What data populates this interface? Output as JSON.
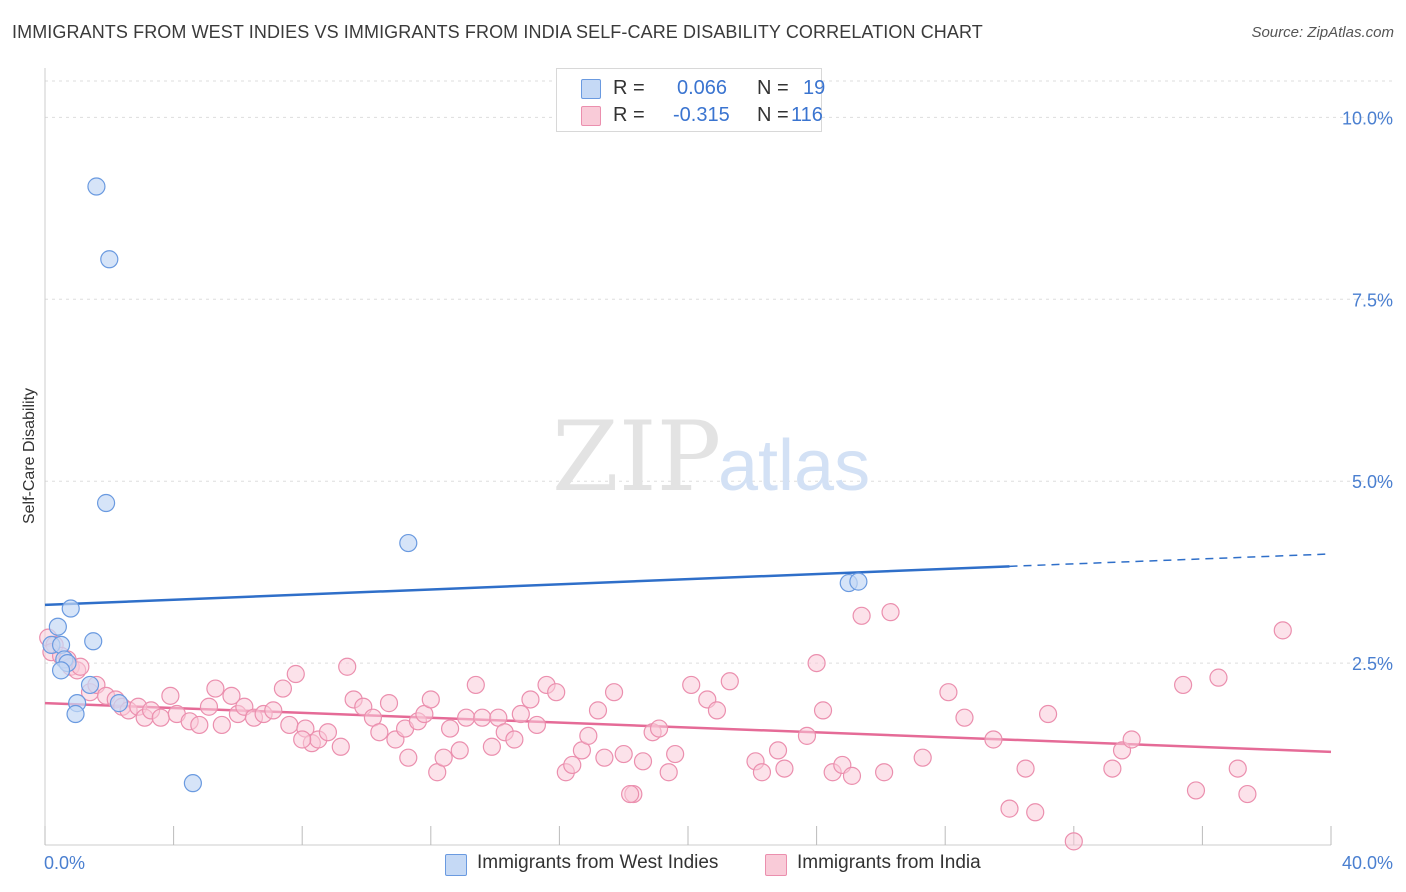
{
  "header": {
    "title": "IMMIGRANTS FROM WEST INDIES VS IMMIGRANTS FROM INDIA SELF-CARE DISABILITY CORRELATION CHART",
    "source": "Source: ZipAtlas.com"
  },
  "watermark": {
    "part1": "ZIP",
    "part2": "atlas"
  },
  "legend": {
    "rows": [
      {
        "r_label": "R =",
        "r_value": "0.066",
        "n_label": "N =",
        "n_value": "19"
      },
      {
        "r_label": "R =",
        "r_value": "-0.315",
        "n_label": "N =",
        "n_value": "116"
      }
    ]
  },
  "bottom_legend": {
    "items": [
      {
        "label": "Immigrants from West Indies"
      },
      {
        "label": "Immigrants from India"
      }
    ]
  },
  "colors": {
    "west_indies_fill": "#c5d9f5",
    "west_indies_stroke": "#6a9ae0",
    "west_indies_line": "#2f6fc9",
    "india_fill": "#f9cbd8",
    "india_stroke": "#eb8fae",
    "india_line": "#e56b97",
    "grid": "#dddddd",
    "axis_text": "#4a7fd0"
  },
  "chart_data": {
    "type": "scatter",
    "title": "IMMIGRANTS FROM WEST INDIES VS IMMIGRANTS FROM INDIA SELF-CARE DISABILITY CORRELATION CHART",
    "xlabel": "",
    "ylabel": "Self-Care Disability",
    "xlim": [
      0,
      40
    ],
    "ylim": [
      0,
      10.5
    ],
    "x_tick_labels": [
      "0.0%",
      "40.0%"
    ],
    "y_ticks": [
      {
        "value": 2.5,
        "label": "2.5%"
      },
      {
        "value": 5.0,
        "label": "5.0%"
      },
      {
        "value": 7.5,
        "label": "7.5%"
      },
      {
        "value": 10.0,
        "label": "10.0%"
      }
    ],
    "x_minor_ticks": [
      0,
      4,
      8,
      12,
      16,
      20,
      24,
      28,
      32,
      36,
      40
    ],
    "grid": true,
    "legend_position": "top-center",
    "series": [
      {
        "name": "Immigrants from West Indies",
        "R": 0.066,
        "N": 19,
        "points": [
          [
            1.6,
            9.05
          ],
          [
            2.0,
            8.05
          ],
          [
            1.9,
            4.7
          ],
          [
            11.3,
            4.15
          ],
          [
            0.8,
            3.25
          ],
          [
            0.4,
            3.0
          ],
          [
            0.2,
            2.75
          ],
          [
            1.5,
            2.8
          ],
          [
            0.5,
            2.75
          ],
          [
            0.6,
            2.55
          ],
          [
            0.7,
            2.5
          ],
          [
            0.5,
            2.4
          ],
          [
            1.4,
            2.2
          ],
          [
            1.0,
            1.95
          ],
          [
            2.3,
            1.95
          ],
          [
            0.95,
            1.8
          ],
          [
            4.6,
            0.85
          ],
          [
            25.0,
            3.6
          ],
          [
            25.3,
            3.62
          ]
        ],
        "trend": {
          "x_start": 0,
          "y_start": 3.3,
          "x_solid_end": 30,
          "y_solid_end": 3.83,
          "x_end": 40,
          "y_end": 4.0
        }
      },
      {
        "name": "Immigrants from India",
        "R": -0.315,
        "N": 116,
        "points": [
          [
            0.1,
            2.85
          ],
          [
            0.3,
            2.75
          ],
          [
            0.2,
            2.65
          ],
          [
            0.5,
            2.6
          ],
          [
            0.7,
            2.55
          ],
          [
            0.8,
            2.45
          ],
          [
            1.0,
            2.4
          ],
          [
            1.1,
            2.45
          ],
          [
            1.4,
            2.1
          ],
          [
            1.6,
            2.2
          ],
          [
            1.9,
            2.05
          ],
          [
            2.2,
            2.0
          ],
          [
            2.4,
            1.9
          ],
          [
            2.6,
            1.85
          ],
          [
            2.9,
            1.9
          ],
          [
            3.1,
            1.75
          ],
          [
            3.3,
            1.85
          ],
          [
            3.6,
            1.75
          ],
          [
            3.9,
            2.05
          ],
          [
            4.1,
            1.8
          ],
          [
            4.5,
            1.7
          ],
          [
            4.8,
            1.65
          ],
          [
            5.1,
            1.9
          ],
          [
            5.3,
            2.15
          ],
          [
            5.5,
            1.65
          ],
          [
            5.8,
            2.05
          ],
          [
            6.0,
            1.8
          ],
          [
            6.2,
            1.9
          ],
          [
            6.5,
            1.75
          ],
          [
            6.8,
            1.8
          ],
          [
            7.1,
            1.85
          ],
          [
            7.4,
            2.15
          ],
          [
            7.6,
            1.65
          ],
          [
            7.8,
            2.35
          ],
          [
            8.1,
            1.6
          ],
          [
            8.3,
            1.4
          ],
          [
            8.5,
            1.45
          ],
          [
            8.8,
            1.55
          ],
          [
            9.2,
            1.35
          ],
          [
            9.4,
            2.45
          ],
          [
            9.6,
            2.0
          ],
          [
            9.9,
            1.9
          ],
          [
            10.2,
            1.75
          ],
          [
            10.4,
            1.55
          ],
          [
            10.7,
            1.95
          ],
          [
            10.9,
            1.45
          ],
          [
            11.2,
            1.6
          ],
          [
            11.3,
            1.2
          ],
          [
            11.6,
            1.7
          ],
          [
            11.8,
            1.8
          ],
          [
            12.0,
            2.0
          ],
          [
            12.2,
            1.0
          ],
          [
            12.4,
            1.2
          ],
          [
            12.6,
            1.6
          ],
          [
            12.9,
            1.3
          ],
          [
            13.1,
            1.75
          ],
          [
            13.4,
            2.2
          ],
          [
            13.6,
            1.75
          ],
          [
            13.9,
            1.35
          ],
          [
            14.1,
            1.75
          ],
          [
            14.3,
            1.55
          ],
          [
            14.6,
            1.45
          ],
          [
            14.8,
            1.8
          ],
          [
            15.1,
            2.0
          ],
          [
            15.3,
            1.65
          ],
          [
            15.6,
            2.2
          ],
          [
            15.9,
            2.1
          ],
          [
            16.2,
            1.0
          ],
          [
            16.4,
            1.1
          ],
          [
            16.7,
            1.3
          ],
          [
            16.9,
            1.5
          ],
          [
            17.2,
            1.85
          ],
          [
            17.4,
            1.2
          ],
          [
            17.7,
            2.1
          ],
          [
            18.0,
            1.25
          ],
          [
            18.3,
            0.7
          ],
          [
            18.6,
            1.15
          ],
          [
            18.9,
            1.55
          ],
          [
            19.1,
            1.6
          ],
          [
            19.4,
            1.0
          ],
          [
            19.6,
            1.25
          ],
          [
            20.1,
            2.2
          ],
          [
            20.6,
            2.0
          ],
          [
            20.9,
            1.85
          ],
          [
            21.3,
            2.25
          ],
          [
            22.1,
            1.15
          ],
          [
            22.3,
            1.0
          ],
          [
            22.8,
            1.3
          ],
          [
            23.0,
            1.05
          ],
          [
            23.7,
            1.5
          ],
          [
            24.0,
            2.5
          ],
          [
            24.2,
            1.85
          ],
          [
            24.5,
            1.0
          ],
          [
            24.8,
            1.1
          ],
          [
            25.1,
            0.95
          ],
          [
            25.4,
            3.15
          ],
          [
            26.1,
            1.0
          ],
          [
            26.3,
            3.2
          ],
          [
            27.3,
            1.2
          ],
          [
            28.1,
            2.1
          ],
          [
            28.6,
            1.75
          ],
          [
            29.5,
            1.45
          ],
          [
            30.0,
            0.5
          ],
          [
            30.5,
            1.05
          ],
          [
            31.2,
            1.8
          ],
          [
            33.2,
            1.05
          ],
          [
            33.5,
            1.3
          ],
          [
            33.8,
            1.45
          ],
          [
            35.4,
            2.2
          ],
          [
            35.8,
            0.75
          ],
          [
            36.5,
            2.3
          ],
          [
            37.1,
            1.05
          ],
          [
            37.4,
            0.7
          ],
          [
            38.5,
            2.95
          ],
          [
            8.0,
            1.45
          ],
          [
            18.2,
            0.7
          ],
          [
            30.8,
            0.45
          ],
          [
            32.0,
            0.05
          ]
        ],
        "trend": {
          "x_start": 0,
          "y_start": 1.95,
          "x_end": 40,
          "y_end": 1.28
        }
      }
    ]
  }
}
